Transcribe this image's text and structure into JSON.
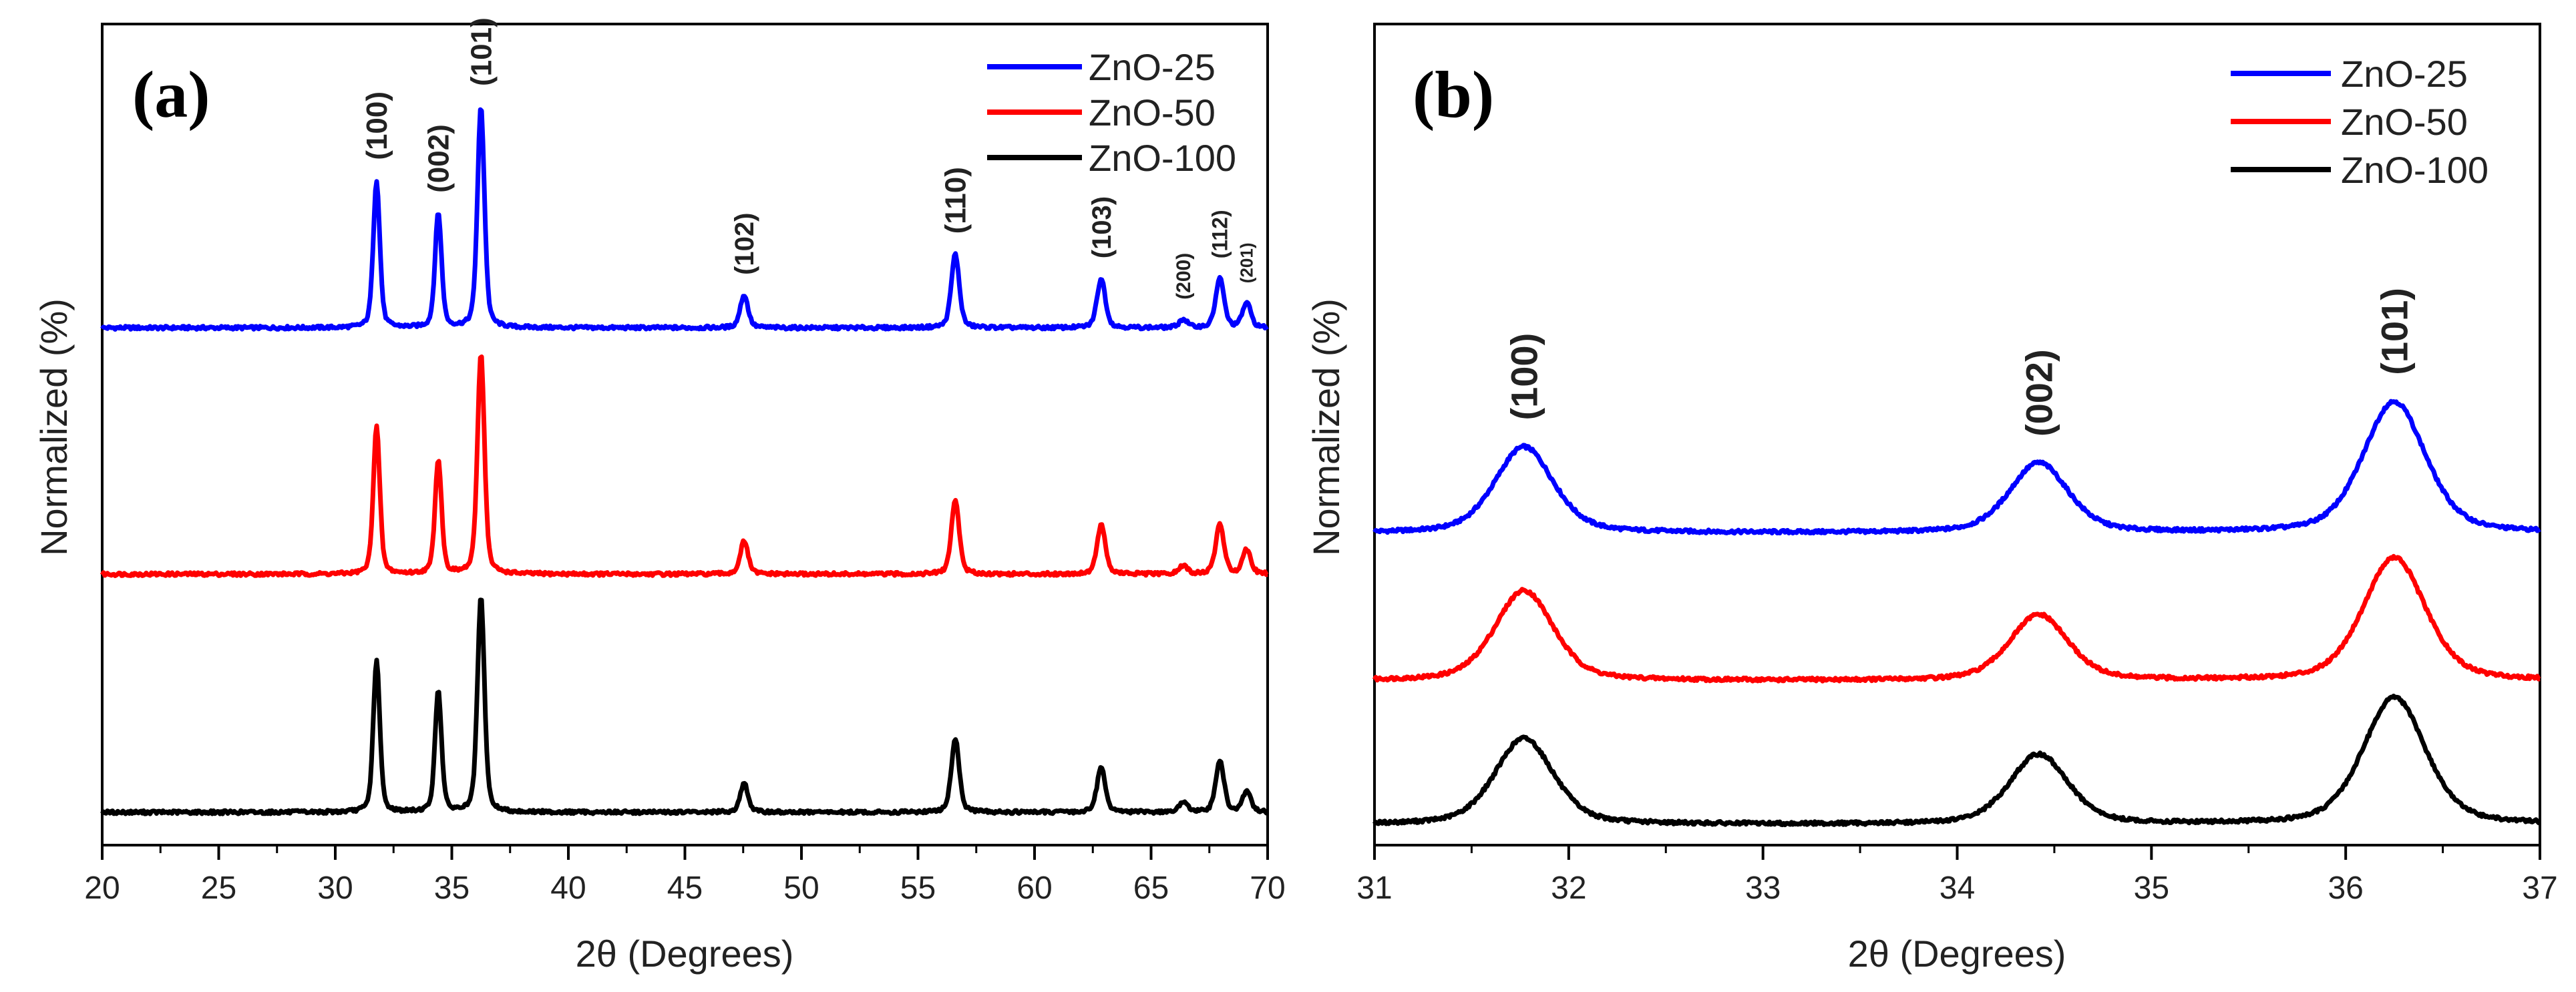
{
  "chart_data": [
    {
      "panel": "(a)",
      "type": "line",
      "xlabel": "2θ (Degrees)",
      "ylabel": "Normalized (%)",
      "xlim": [
        20,
        70
      ],
      "ylim": [
        0,
        1
      ],
      "xticks": [
        "20",
        "25",
        "30",
        "35",
        "40",
        "45",
        "50",
        "55",
        "60",
        "65",
        "70"
      ],
      "legend_position": "top-right",
      "legend": [
        "ZnO-25",
        "ZnO-50",
        "ZnO-100"
      ],
      "peak_labels": [
        {
          "text": "(100)",
          "x": 31.77
        },
        {
          "text": "(002)",
          "x": 34.42
        },
        {
          "text": "(101)",
          "x": 36.25
        },
        {
          "text": "(102)",
          "x": 47.54
        },
        {
          "text": "(110)",
          "x": 56.6
        },
        {
          "text": "(103)",
          "x": 62.86
        },
        {
          "text": "(200)",
          "x": 66.38
        },
        {
          "text": "(112)",
          "x": 67.95
        },
        {
          "text": "(201)",
          "x": 69.1
        }
      ],
      "peaks": [
        {
          "x": 31.77,
          "width": 0.14
        },
        {
          "x": 34.42,
          "width": 0.14
        },
        {
          "x": 36.25,
          "width": 0.15
        },
        {
          "x": 47.54,
          "width": 0.17
        },
        {
          "x": 56.6,
          "width": 0.17
        },
        {
          "x": 62.86,
          "width": 0.18
        },
        {
          "x": 66.38,
          "width": 0.18
        },
        {
          "x": 67.95,
          "width": 0.18
        },
        {
          "x": 69.1,
          "width": 0.18
        }
      ],
      "series": [
        {
          "name": "ZnO-25",
          "color": "#0000ff",
          "baseline": 0.63,
          "amplitudes": [
            0.18,
            0.14,
            0.27,
            0.04,
            0.09,
            0.06,
            0.01,
            0.06,
            0.03
          ]
        },
        {
          "name": "ZnO-50",
          "color": "#ff0000",
          "baseline": 0.33,
          "amplitudes": [
            0.18,
            0.14,
            0.27,
            0.04,
            0.09,
            0.06,
            0.01,
            0.06,
            0.03
          ]
        },
        {
          "name": "ZnO-100",
          "color": "#000000",
          "baseline": 0.04,
          "amplitudes": [
            0.185,
            0.148,
            0.262,
            0.035,
            0.09,
            0.055,
            0.012,
            0.062,
            0.025
          ]
        }
      ]
    },
    {
      "panel": "(b)",
      "type": "line",
      "xlabel": "2θ (Degrees)",
      "ylabel": "Normalized (%)",
      "xlim": [
        31,
        37
      ],
      "ylim": [
        0,
        1
      ],
      "xticks": [
        "31",
        "32",
        "33",
        "34",
        "35",
        "36",
        "37"
      ],
      "legend_position": "top-right",
      "legend": [
        "ZnO-25",
        "ZnO-50",
        "ZnO-100"
      ],
      "peak_labels": [
        {
          "text": "(100)",
          "x": 31.77
        },
        {
          "text": "(002)",
          "x": 34.42
        },
        {
          "text": "(101)",
          "x": 36.25
        }
      ],
      "peaks": [
        {
          "x": 31.77,
          "width": 0.15
        },
        {
          "x": 34.42,
          "width": 0.15
        },
        {
          "x": 36.25,
          "width": 0.16
        }
      ],
      "series": [
        {
          "name": "ZnO-25",
          "color": "#0000ff",
          "baseline": 0.38,
          "amplitudes": [
            0.105,
            0.085,
            0.16
          ]
        },
        {
          "name": "ZnO-50",
          "color": "#ff0000",
          "baseline": 0.2,
          "amplitudes": [
            0.11,
            0.08,
            0.15
          ]
        },
        {
          "name": "ZnO-100",
          "color": "#000000",
          "baseline": 0.025,
          "amplitudes": [
            0.105,
            0.085,
            0.155
          ]
        }
      ]
    }
  ]
}
